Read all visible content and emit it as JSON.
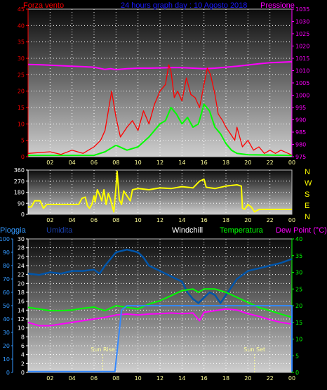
{
  "header": {
    "left_label": "Forza vento",
    "title": "24 hours graph day : 10 Agosto 2018",
    "right_label": "Pressione"
  },
  "mid": {
    "compass": [
      "N",
      "W",
      "S",
      "E",
      "N"
    ]
  },
  "bottom": {
    "labels": {
      "pioggia": "Pioggia",
      "umidita": "Umidita",
      "windchill": "Windchill",
      "temperatura": "Temperatura",
      "dewpoint": "Dew Point (°C)"
    },
    "sunrise": "Sun Rise",
    "sunset": "Sun Set"
  },
  "colors": {
    "wind": "#ff0000",
    "gust": "#00ff00",
    "pressure": "#ff00ff",
    "direction": "#ffff00",
    "humidity": "#0055aa",
    "rain": "#3388ff",
    "temperature": "#00ff00",
    "dewpoint": "#ff00ff"
  },
  "chart_data": [
    {
      "type": "line",
      "x_ticks": [
        "02",
        "04",
        "06",
        "08",
        "10",
        "12",
        "14",
        "16",
        "18",
        "20",
        "22",
        "00"
      ],
      "y_left": {
        "ylim": [
          0,
          45
        ],
        "ticks": [
          0,
          5,
          10,
          15,
          20,
          25,
          30,
          35,
          40,
          45
        ]
      },
      "y_right": {
        "ylim": [
          975,
          1035
        ],
        "ticks": [
          975,
          980,
          985,
          990,
          995,
          1000,
          1005,
          1010,
          1015,
          1020,
          1025,
          1030,
          1035
        ]
      },
      "series": [
        {
          "key": "pressure",
          "axis": "right",
          "values": [
            [
              0,
              1012.5
            ],
            [
              1,
              1012.4
            ],
            [
              2,
              1012.2
            ],
            [
              3,
              1012
            ],
            [
              4,
              1011.8
            ],
            [
              5,
              1011.6
            ],
            [
              6,
              1011.4
            ],
            [
              7,
              1010.5
            ],
            [
              7.5,
              1010.8
            ],
            [
              8,
              1010.4
            ],
            [
              8.5,
              1010.6
            ],
            [
              9,
              1010.8
            ],
            [
              10,
              1011
            ],
            [
              11,
              1011
            ],
            [
              12,
              1011.1
            ],
            [
              13,
              1011.2
            ],
            [
              14,
              1011.2
            ],
            [
              15,
              1011
            ],
            [
              16,
              1010.8
            ],
            [
              17,
              1011
            ],
            [
              18,
              1011.4
            ],
            [
              19,
              1011.8
            ],
            [
              20,
              1012.3
            ],
            [
              21,
              1012.8
            ],
            [
              22,
              1013.2
            ],
            [
              23,
              1013.4
            ],
            [
              24,
              1013.6
            ]
          ]
        },
        {
          "key": "gust",
          "axis": "left",
          "values": [
            [
              0,
              0.4
            ],
            [
              6,
              0.4
            ],
            [
              7,
              1.5
            ],
            [
              8,
              3.5
            ],
            [
              9,
              2
            ],
            [
              10,
              3
            ],
            [
              11,
              6
            ],
            [
              12,
              10
            ],
            [
              12.5,
              11
            ],
            [
              13,
              15
            ],
            [
              13.5,
              13
            ],
            [
              14,
              10
            ],
            [
              14.5,
              12
            ],
            [
              15,
              9
            ],
            [
              15.5,
              10
            ],
            [
              16,
              16
            ],
            [
              16.5,
              14
            ],
            [
              17,
              9
            ],
            [
              17.5,
              7
            ],
            [
              18,
              4
            ],
            [
              18.5,
              2
            ],
            [
              19,
              1
            ],
            [
              20,
              0.6
            ],
            [
              24,
              0.4
            ]
          ]
        },
        {
          "key": "wind",
          "axis": "left",
          "values": [
            [
              0,
              1
            ],
            [
              2,
              1.5
            ],
            [
              3,
              0.7
            ],
            [
              4,
              2
            ],
            [
              5,
              1
            ],
            [
              6,
              3
            ],
            [
              6.6,
              5
            ],
            [
              7,
              8
            ],
            [
              7.6,
              20
            ],
            [
              8,
              12
            ],
            [
              8.4,
              6
            ],
            [
              9,
              9
            ],
            [
              9.5,
              11
            ],
            [
              10,
              8
            ],
            [
              10.5,
              14
            ],
            [
              11,
              10
            ],
            [
              11.5,
              16
            ],
            [
              12,
              20
            ],
            [
              12.5,
              22
            ],
            [
              12.8,
              28
            ],
            [
              13,
              26
            ],
            [
              13.3,
              18
            ],
            [
              13.6,
              20
            ],
            [
              14,
              17
            ],
            [
              14.4,
              24
            ],
            [
              14.8,
              19
            ],
            [
              15.2,
              18
            ],
            [
              15.6,
              15
            ],
            [
              16,
              22
            ],
            [
              16.3,
              27
            ],
            [
              16.6,
              25
            ],
            [
              17,
              19
            ],
            [
              17.3,
              13
            ],
            [
              17.7,
              11
            ],
            [
              18,
              9
            ],
            [
              18.4,
              7
            ],
            [
              18.8,
              5
            ],
            [
              19,
              9
            ],
            [
              19.5,
              3
            ],
            [
              20,
              5
            ],
            [
              20.5,
              2
            ],
            [
              21,
              3
            ],
            [
              21.5,
              1
            ],
            [
              22,
              2
            ],
            [
              22.5,
              1
            ],
            [
              23,
              2
            ],
            [
              24,
              0.5
            ]
          ]
        }
      ]
    },
    {
      "type": "line",
      "x_ticks": [
        "02",
        "04",
        "06",
        "08",
        "10",
        "12",
        "14",
        "16",
        "18",
        "20",
        "22",
        "00"
      ],
      "ylim": [
        0,
        360
      ],
      "ticks": [
        0,
        90,
        180,
        270,
        360
      ],
      "series": [
        {
          "key": "direction",
          "values": [
            [
              0,
              60
            ],
            [
              0.3,
              60
            ],
            [
              0.6,
              110
            ],
            [
              1.1,
              110
            ],
            [
              1.4,
              50
            ],
            [
              1.7,
              80
            ],
            [
              4.6,
              80
            ],
            [
              4.9,
              130
            ],
            [
              5.2,
              140
            ],
            [
              5.4,
              70
            ],
            [
              5.6,
              50
            ],
            [
              5.8,
              80
            ],
            [
              6,
              150
            ],
            [
              6.1,
              100
            ],
            [
              6.3,
              200
            ],
            [
              6.5,
              160
            ],
            [
              6.7,
              110
            ],
            [
              6.9,
              200
            ],
            [
              7.1,
              80
            ],
            [
              7.3,
              170
            ],
            [
              7.5,
              120
            ],
            [
              7.8,
              20
            ],
            [
              8,
              220
            ],
            [
              8.1,
              350
            ],
            [
              8.3,
              120
            ],
            [
              8.5,
              80
            ],
            [
              8.7,
              190
            ],
            [
              9,
              150
            ],
            [
              9.3,
              110
            ],
            [
              9.5,
              200
            ],
            [
              10,
              210
            ],
            [
              11,
              200
            ],
            [
              12,
              215
            ],
            [
              13,
              210
            ],
            [
              14,
              225
            ],
            [
              15,
              215
            ],
            [
              15.6,
              270
            ],
            [
              16,
              285
            ],
            [
              16.2,
              220
            ],
            [
              17,
              210
            ],
            [
              18,
              230
            ],
            [
              19,
              240
            ],
            [
              19.4,
              230
            ],
            [
              19.5,
              50
            ],
            [
              19.7,
              40
            ],
            [
              20,
              80
            ],
            [
              20.3,
              60
            ],
            [
              20.6,
              20
            ],
            [
              21,
              40
            ],
            [
              24,
              40
            ]
          ]
        }
      ]
    },
    {
      "type": "line",
      "x_ticks": [
        "02",
        "04",
        "06",
        "08",
        "10",
        "12",
        "14",
        "16",
        "18",
        "20",
        "22",
        "00"
      ],
      "y_left_rain": {
        "ylim": [
          0,
          30
        ],
        "ticks": [
          0,
          2,
          4,
          6,
          8,
          10,
          12,
          14,
          16,
          18,
          20,
          22,
          24,
          26,
          28,
          30
        ]
      },
      "y_left_humidity": {
        "ylim": [
          0,
          100
        ],
        "ticks": [
          0,
          10,
          20,
          30,
          40,
          50,
          60,
          70,
          80,
          90,
          100
        ]
      },
      "y_right": {
        "ylim": [
          0,
          40
        ],
        "ticks": [
          0,
          5,
          10,
          15,
          20,
          25,
          30,
          35,
          40
        ]
      },
      "annotations": [
        {
          "label": "Sun Rise",
          "x": 6.8
        },
        {
          "label": "Sun Set",
          "x": 20.6
        }
      ],
      "series": [
        {
          "key": "humidity",
          "axis": "humidity",
          "values": [
            [
              0,
              74
            ],
            [
              1,
              73
            ],
            [
              2,
              75
            ],
            [
              3,
              74
            ],
            [
              4,
              76
            ],
            [
              5,
              76
            ],
            [
              6,
              77
            ],
            [
              6.5,
              74
            ],
            [
              7,
              80
            ],
            [
              7.5,
              85
            ],
            [
              8,
              90
            ],
            [
              9,
              92
            ],
            [
              10,
              90
            ],
            [
              10.5,
              86
            ],
            [
              11,
              80
            ],
            [
              12,
              76
            ],
            [
              13,
              72
            ],
            [
              14,
              68
            ],
            [
              14.5,
              60
            ],
            [
              15,
              55
            ],
            [
              15.5,
              52
            ],
            [
              16,
              56
            ],
            [
              16.5,
              60
            ],
            [
              17,
              58
            ],
            [
              17.5,
              52
            ],
            [
              18,
              58
            ],
            [
              18.5,
              64
            ],
            [
              19,
              70
            ],
            [
              20,
              76
            ],
            [
              21,
              78
            ],
            [
              22,
              80
            ],
            [
              23,
              82
            ],
            [
              24,
              85
            ]
          ]
        },
        {
          "key": "temperature",
          "axis": "right",
          "values": [
            [
              0,
              19.5
            ],
            [
              1,
              19
            ],
            [
              2,
              18.5
            ],
            [
              3,
              18.5
            ],
            [
              4,
              18.7
            ],
            [
              5,
              19.2
            ],
            [
              6,
              19.6
            ],
            [
              6.5,
              19
            ],
            [
              7,
              18.5
            ],
            [
              8,
              20
            ],
            [
              9,
              19.5
            ],
            [
              10,
              19
            ],
            [
              11,
              20.5
            ],
            [
              12,
              21.5
            ],
            [
              13,
              23
            ],
            [
              14,
              24.5
            ],
            [
              15,
              25
            ],
            [
              15.5,
              24
            ],
            [
              16,
              25
            ],
            [
              17,
              25
            ],
            [
              18,
              24
            ],
            [
              19,
              22.5
            ],
            [
              20,
              21
            ],
            [
              21,
              19.5
            ],
            [
              22,
              18.5
            ],
            [
              23,
              17.5
            ],
            [
              24,
              16.5
            ]
          ]
        },
        {
          "key": "dewpoint",
          "axis": "right",
          "values": [
            [
              0,
              15
            ],
            [
              1,
              14
            ],
            [
              2,
              14
            ],
            [
              3,
              14.5
            ],
            [
              4,
              15
            ],
            [
              5,
              15.5
            ],
            [
              6,
              16
            ],
            [
              7,
              16.5
            ],
            [
              8,
              17.2
            ],
            [
              9,
              17.5
            ],
            [
              10,
              17.2
            ],
            [
              11,
              17.5
            ],
            [
              12,
              17.6
            ],
            [
              13,
              17.8
            ],
            [
              14,
              17.6
            ],
            [
              15,
              17.8
            ],
            [
              15.6,
              15.5
            ],
            [
              16,
              18
            ],
            [
              17,
              18.5
            ],
            [
              18,
              19
            ],
            [
              19,
              18.7
            ],
            [
              20,
              17.6
            ],
            [
              21,
              16.8
            ],
            [
              22,
              15.8
            ],
            [
              23,
              15
            ],
            [
              24,
              14.5
            ]
          ]
        },
        {
          "key": "rain",
          "axis": "rain",
          "values": [
            [
              0,
              0.2
            ],
            [
              7.9,
              0.2
            ],
            [
              8.5,
              14
            ],
            [
              9,
              15
            ],
            [
              24,
              15
            ],
            [
              24,
              0.2
            ]
          ]
        }
      ]
    }
  ]
}
